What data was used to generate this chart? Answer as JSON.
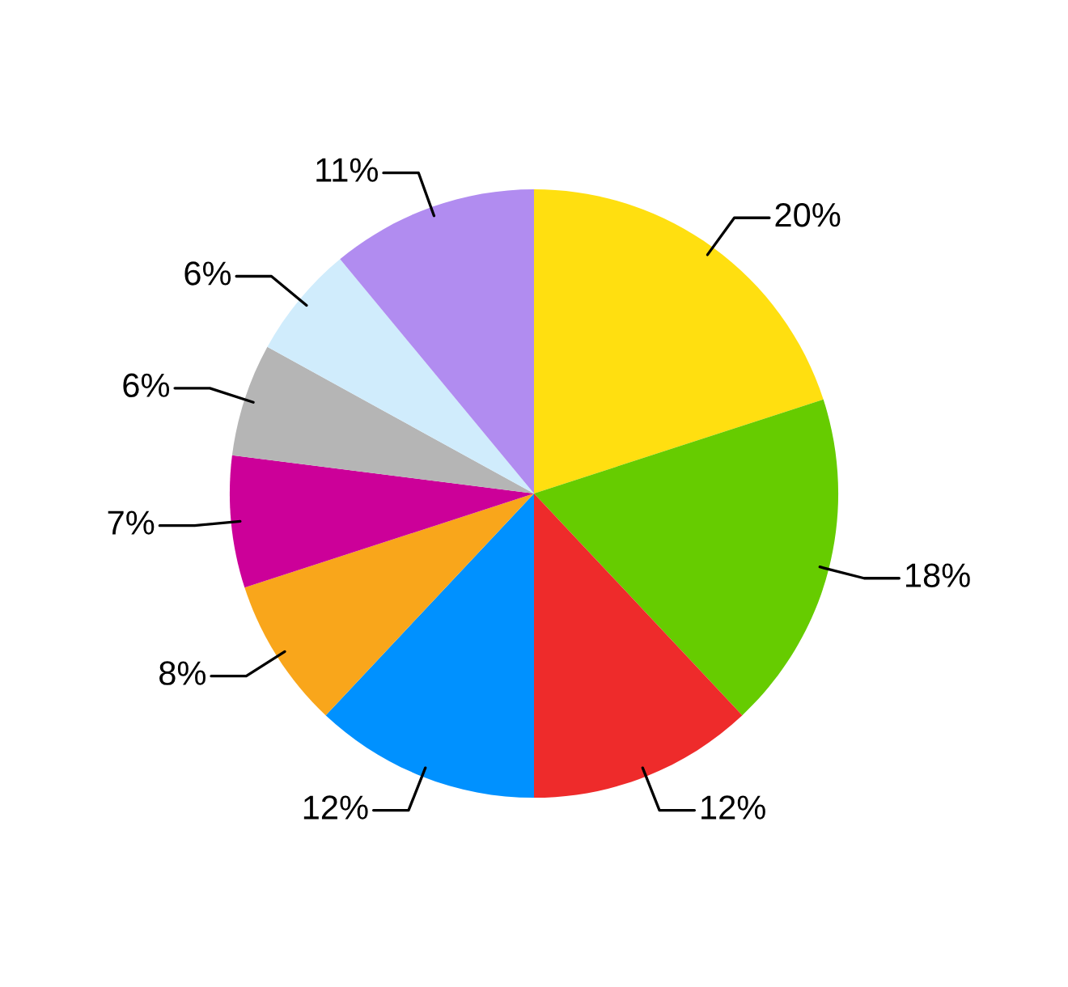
{
  "chart_data": {
    "type": "pie",
    "categories": [
      null,
      null,
      null,
      null,
      null,
      null,
      null,
      null,
      null
    ],
    "values": [
      20,
      18,
      12,
      12,
      8,
      7,
      6,
      6,
      11
    ],
    "value_labels": [
      "20%",
      "18%",
      "12%",
      "12%",
      "8%",
      "7%",
      "6%",
      "6%",
      "11%"
    ],
    "colors": [
      "#ffdf10",
      "#66cc00",
      "#ee2b2b",
      "#0091ff",
      "#f9a61b",
      "#cc0099",
      "#b5b5b5",
      "#d0ecfc",
      "#b18cf0"
    ],
    "legend": false
  }
}
